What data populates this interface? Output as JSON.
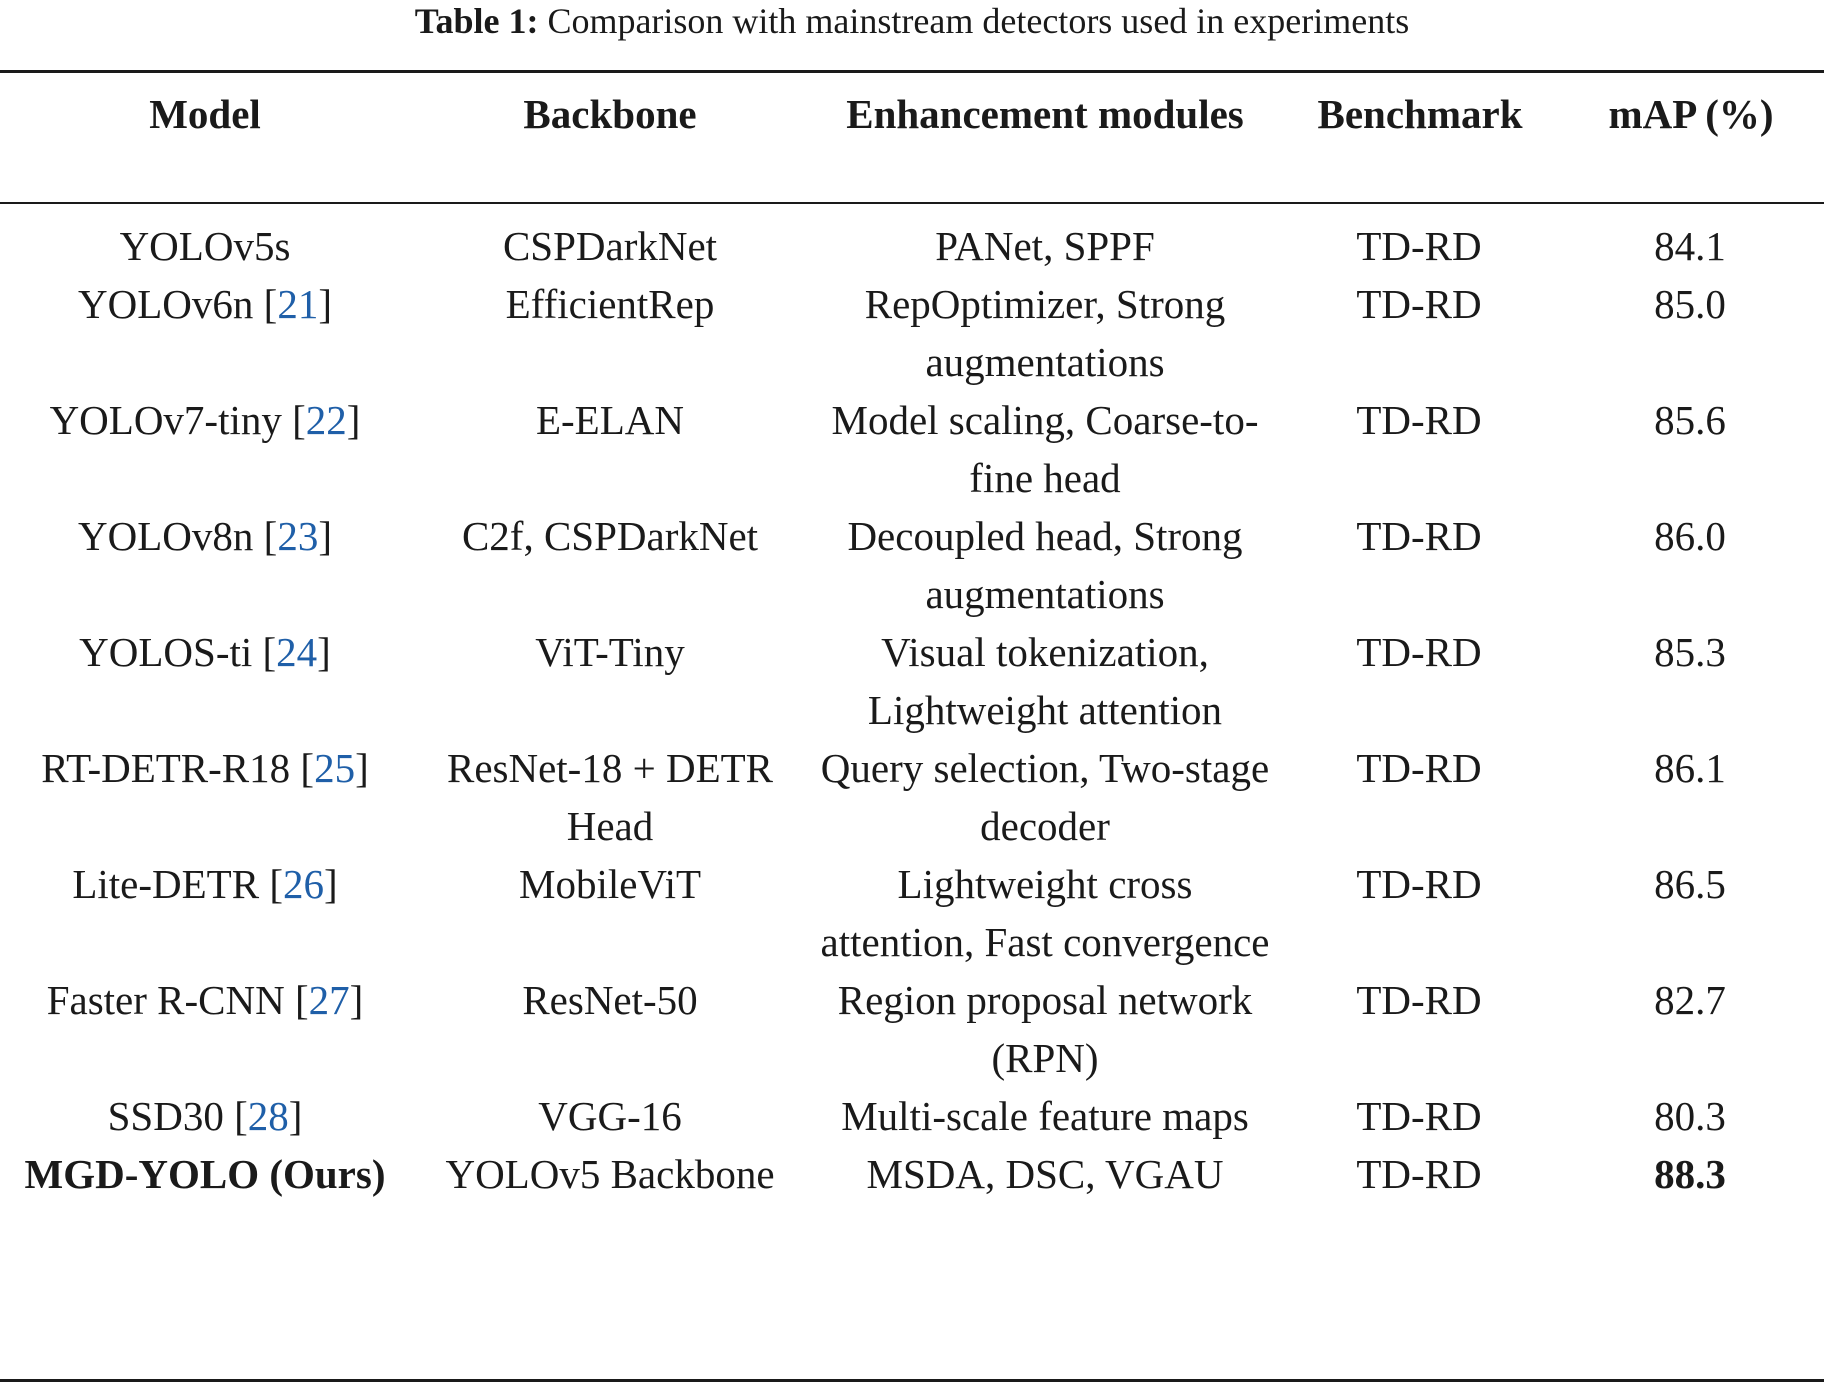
{
  "caption": {
    "label": "Table 1:",
    "text": "Comparison with mainstream detectors used in experiments"
  },
  "columns": [
    "Model",
    "Backbone",
    "Enhancement modules",
    "Benchmark",
    "mAP (%)"
  ],
  "rows": [
    {
      "model": "YOLOv5s",
      "ref": "",
      "backbone": "CSPDarkNet",
      "modules": "PANet, SPPF",
      "benchmark": "TD-RD",
      "map": "84.1"
    },
    {
      "model": "YOLOv6n",
      "ref": "21",
      "backbone": "EfficientRep",
      "modules": "RepOptimizer, Strong augmentations",
      "benchmark": "TD-RD",
      "map": "85.0"
    },
    {
      "model": "YOLOv7-tiny",
      "ref": "22",
      "backbone": "E-ELAN",
      "modules": "Model scaling, Coarse-to-fine head",
      "benchmark": "TD-RD",
      "map": "85.6"
    },
    {
      "model": "YOLOv8n",
      "ref": "23",
      "backbone": "C2f, CSPDarkNet",
      "modules": "Decoupled head, Strong augmentations",
      "benchmark": "TD-RD",
      "map": "86.0"
    },
    {
      "model": "YOLOS-ti",
      "ref": "24",
      "backbone": "ViT-Tiny",
      "modules": "Visual tokenization, Lightweight attention",
      "benchmark": "TD-RD",
      "map": "85.3"
    },
    {
      "model": "RT-DETR-R18",
      "ref": "25",
      "backbone": "ResNet-18 + DETR Head",
      "modules": "Query selection, Two-stage decoder",
      "benchmark": "TD-RD",
      "map": "86.1"
    },
    {
      "model": "Lite-DETR",
      "ref": "26",
      "backbone": "MobileViT",
      "modules": "Lightweight cross attention, Fast convergence",
      "benchmark": "TD-RD",
      "map": "86.5"
    },
    {
      "model": "Faster R-CNN",
      "ref": "27",
      "backbone": "ResNet-50",
      "modules": "Region proposal network (RPN)",
      "benchmark": "TD-RD",
      "map": "82.7"
    },
    {
      "model": "SSD30",
      "ref": "28",
      "backbone": "VGG-16",
      "modules": "Multi-scale feature maps",
      "benchmark": "TD-RD",
      "map": "80.3"
    },
    {
      "model": "MGD-YOLO (Ours)",
      "ref": "",
      "backbone": "YOLOv5 Backbone",
      "modules": "MSDA, DSC, VGAU",
      "benchmark": "TD-RD",
      "map": "88.3"
    }
  ]
}
